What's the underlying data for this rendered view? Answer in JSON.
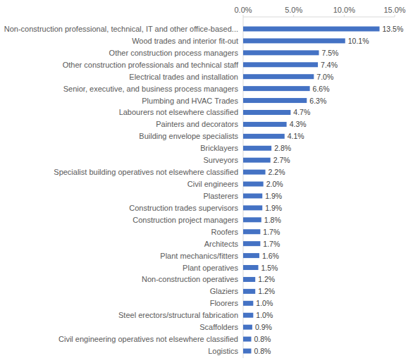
{
  "chart_data": {
    "type": "bar",
    "orientation": "horizontal",
    "categories": [
      "Non-construction professional, technical, IT and other office-based...",
      "Wood trades and interior fit-out",
      "Other construction process managers",
      "Other construction professionals and technical staff",
      "Electrical trades and installation",
      "Senior, executive, and business process managers",
      "Plumbing and HVAC Trades",
      "Labourers not elsewhere classified",
      "Painters and decorators",
      "Building envelope specialists",
      "Bricklayers",
      "Surveyors",
      "Specialist building operatives not elsewhere classified",
      "Civil engineers",
      "Plasterers",
      "Construction trades supervisors",
      "Construction project managers",
      "Roofers",
      "Architects",
      "Plant mechanics/fitters",
      "Plant operatives",
      "Non-construction operatives",
      "Glaziers",
      "Floorers",
      "Steel erectors/structural fabrication",
      "Scaffolders",
      "Civil engineering operatives not elsewhere classified",
      "Logistics"
    ],
    "values": [
      13.5,
      10.1,
      7.5,
      7.4,
      7.0,
      6.6,
      6.3,
      4.7,
      4.3,
      4.1,
      2.8,
      2.7,
      2.2,
      2.0,
      1.9,
      1.9,
      1.8,
      1.7,
      1.7,
      1.6,
      1.5,
      1.2,
      1.2,
      1.0,
      1.0,
      0.9,
      0.8,
      0.8
    ],
    "value_labels": [
      "13.5%",
      "10.1%",
      "7.5%",
      "7.4%",
      "7.0%",
      "6.6%",
      "6.3%",
      "4.7%",
      "4.3%",
      "4.1%",
      "2.8%",
      "2.7%",
      "2.2%",
      "2.0%",
      "1.9%",
      "1.9%",
      "1.8%",
      "1.7%",
      "1.7%",
      "1.6%",
      "1.5%",
      "1.2%",
      "1.2%",
      "1.0%",
      "1.0%",
      "0.9%",
      "0.8%",
      "0.8%"
    ],
    "color": "#4472c4",
    "xlim": [
      0,
      15
    ],
    "xticks": [
      {
        "value": 0,
        "label": "0.0%"
      },
      {
        "value": 5,
        "label": "5.0%"
      },
      {
        "value": 10,
        "label": "10.0%"
      },
      {
        "value": 15,
        "label": "15.0%"
      }
    ],
    "grid": false,
    "data_labels": true
  }
}
